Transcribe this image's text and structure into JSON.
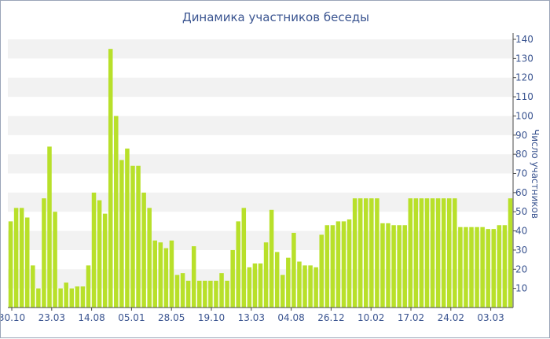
{
  "chart_data": {
    "type": "bar",
    "title": "Динамика участников беседы",
    "xlabel": "",
    "ylabel": "Число участников",
    "ylim": [
      0,
      140
    ],
    "y_ticks": [
      10,
      20,
      30,
      40,
      50,
      60,
      70,
      80,
      90,
      100,
      110,
      120,
      130,
      140
    ],
    "x_tick_labels": [
      "30.10",
      "23.03",
      "14.08",
      "05.01",
      "28.05",
      "19.10",
      "13.03",
      "04.08",
      "26.12",
      "10.02",
      "17.02",
      "24.02",
      "03.03"
    ],
    "values": [
      45,
      52,
      52,
      47,
      22,
      10,
      57,
      84,
      50,
      10,
      13,
      10,
      11,
      11,
      22,
      60,
      56,
      49,
      135,
      100,
      77,
      83,
      74,
      74,
      60,
      52,
      35,
      34,
      31,
      35,
      17,
      18,
      14,
      32,
      14,
      14,
      14,
      14,
      18,
      14,
      30,
      45,
      52,
      21,
      23,
      23,
      34,
      51,
      29,
      17,
      26,
      39,
      24,
      22,
      22,
      21,
      38,
      43,
      43,
      45,
      45,
      46,
      57,
      57,
      57,
      57,
      57,
      44,
      44,
      43,
      43,
      43,
      57,
      57,
      57,
      57,
      57,
      57,
      57,
      57,
      57,
      42,
      42,
      42,
      42,
      42,
      41,
      41,
      43,
      43,
      57
    ],
    "grid": true,
    "legend": "none",
    "colors": {
      "bar": "#b8e02a",
      "band": "#f2f2f2",
      "axis": "#4a4a4a",
      "text": "#3a5490"
    }
  }
}
